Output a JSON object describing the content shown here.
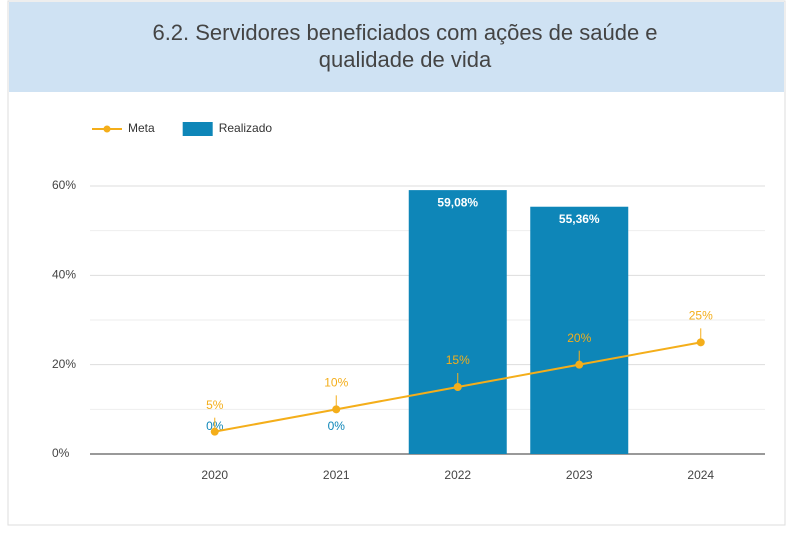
{
  "chart_data": {
    "type": "bar_line",
    "title": "6.2. Servidores beneficiados com ações de saúde e qualidade de vida",
    "title_lines": [
      "6.2. Servidores beneficiados com ações de saúde e",
      "qualidade de vida"
    ],
    "categories": [
      "2020",
      "2021",
      "2022",
      "2023",
      "2024"
    ],
    "series": [
      {
        "name": "Meta",
        "type": "line",
        "color": "#f4ae1a",
        "values": [
          5,
          10,
          15,
          20,
          25
        ],
        "value_labels": [
          "5%",
          "10%",
          "15%",
          "20%",
          "25%"
        ]
      },
      {
        "name": "Realizado",
        "type": "bar",
        "color": "#0e86b8",
        "values": [
          0,
          0,
          59.08,
          55.36,
          null
        ],
        "value_labels": [
          "0%",
          "0%",
          "59,08%",
          "55,36%",
          null
        ]
      }
    ],
    "ylim": [
      0,
      60
    ],
    "yticks": [
      {
        "value": 0,
        "label": "0%"
      },
      {
        "value": 20,
        "label": "20%"
      },
      {
        "value": 40,
        "label": "40%"
      },
      {
        "value": 60,
        "label": "60%"
      }
    ],
    "minor_yticks": [
      10,
      30,
      50
    ],
    "grid": true,
    "legend": "top-left"
  }
}
